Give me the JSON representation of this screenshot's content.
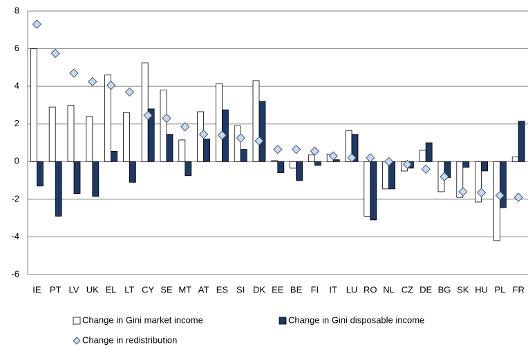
{
  "chart_data": {
    "type": "bar",
    "categories": [
      "IE",
      "PT",
      "LV",
      "UK",
      "EL",
      "LT",
      "CY",
      "SE",
      "MT",
      "AT",
      "ES",
      "SI",
      "DK",
      "EE",
      "BE",
      "FI",
      "IT",
      "LU",
      "RO",
      "NL",
      "CZ",
      "DE",
      "BG",
      "SK",
      "HU",
      "PL",
      "FR"
    ],
    "series": [
      {
        "name": "Change in Gini market income",
        "type": "bar",
        "color": "#ffffff",
        "values": [
          6.0,
          2.9,
          3.0,
          2.4,
          4.6,
          2.6,
          5.25,
          3.8,
          1.15,
          2.65,
          4.15,
          1.9,
          4.3,
          0.05,
          -0.35,
          0.35,
          0.4,
          1.65,
          -2.9,
          -1.45,
          -0.5,
          0.6,
          -1.6,
          -1.9,
          -2.15,
          -4.2,
          0.25
        ]
      },
      {
        "name": "Change in Gini disposable income",
        "type": "bar",
        "color": "#1f3864",
        "values": [
          -1.3,
          -2.9,
          -1.7,
          -1.85,
          0.55,
          -1.1,
          2.8,
          1.45,
          -0.75,
          1.2,
          2.75,
          0.65,
          3.2,
          -0.6,
          -1.0,
          -0.2,
          0.1,
          1.45,
          -3.1,
          -1.45,
          -0.35,
          1.0,
          -0.85,
          -0.3,
          -0.5,
          -2.45,
          2.15
        ]
      },
      {
        "name": "Change in redistribution",
        "type": "scatter",
        "color": "#c6d9f1",
        "values": [
          7.3,
          5.75,
          4.7,
          4.25,
          4.05,
          3.7,
          2.45,
          2.3,
          1.85,
          1.45,
          1.4,
          1.25,
          1.1,
          0.65,
          0.65,
          0.55,
          0.3,
          0.2,
          0.2,
          0.0,
          -0.15,
          -0.4,
          -0.8,
          -1.6,
          -1.65,
          -1.8,
          -1.9
        ]
      }
    ],
    "ylim": [
      -6,
      8
    ],
    "yticks": [
      -6,
      -4,
      -2,
      0,
      2,
      4,
      6,
      8
    ],
    "grid": true,
    "legend": "bottom"
  }
}
